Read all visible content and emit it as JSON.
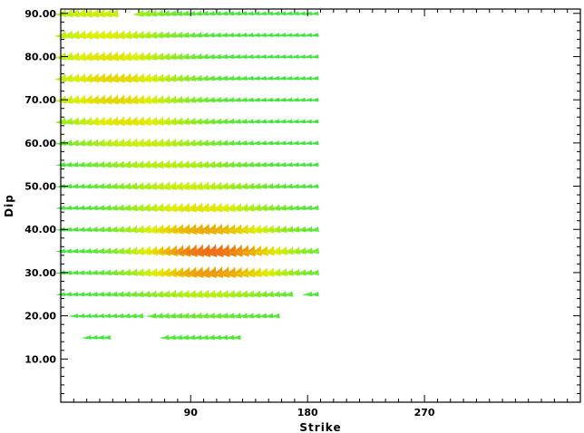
{
  "chart_data": {
    "type": "scatter",
    "xlabel": "Strike",
    "ylabel": "Dip",
    "xlim": [
      -10,
      390
    ],
    "ylim": [
      0,
      91
    ],
    "xticks": [
      90,
      180,
      270
    ],
    "xtick_labels": [
      "90",
      "180",
      "270"
    ],
    "yticks": [
      10,
      20,
      30,
      40,
      50,
      60,
      70,
      80,
      90
    ],
    "ytick_labels": [
      "10.00",
      "20.00",
      "30.00",
      "40.00",
      "50.00",
      "60.00",
      "70.00",
      "80.00",
      "90.00"
    ],
    "grid": false,
    "legend": "none",
    "strike_step": 5,
    "colors": {
      "low": "#3ce63c",
      "mid": "#e8f000",
      "high": "#f05a1e"
    },
    "rows": [
      {
        "dip": 15,
        "segments": [
          [
            10,
            25
          ],
          [
            70,
            125
          ]
        ],
        "peak": 95,
        "level": 0.1
      },
      {
        "dip": 20,
        "segments": [
          [
            0,
            50
          ],
          [
            60,
            155
          ]
        ],
        "peak": 100,
        "level": 0.18
      },
      {
        "dip": 25,
        "segments": [
          [
            -10,
            165
          ],
          [
            180,
            185
          ]
        ],
        "peak": 100,
        "level": 0.4
      },
      {
        "dip": 30,
        "segments": [
          [
            -10,
            185
          ]
        ],
        "peak": 105,
        "level": 0.8
      },
      {
        "dip": 35,
        "segments": [
          [
            -10,
            185
          ]
        ],
        "peak": 105,
        "level": 0.95
      },
      {
        "dip": 40,
        "segments": [
          [
            -10,
            185
          ]
        ],
        "peak": 100,
        "level": 0.75
      },
      {
        "dip": 45,
        "segments": [
          [
            -10,
            185
          ]
        ],
        "peak": 95,
        "level": 0.55
      },
      {
        "dip": 50,
        "segments": [
          [
            -10,
            185
          ]
        ],
        "peak": 85,
        "level": 0.45
      },
      {
        "dip": 55,
        "segments": [
          [
            -10,
            185
          ]
        ],
        "peak": 70,
        "level": 0.4
      },
      {
        "dip": 60,
        "segments": [
          [
            -10,
            185
          ]
        ],
        "peak": 50,
        "level": 0.45
      },
      {
        "dip": 65,
        "segments": [
          [
            -10,
            185
          ]
        ],
        "peak": 40,
        "level": 0.55
      },
      {
        "dip": 70,
        "segments": [
          [
            -10,
            185
          ]
        ],
        "peak": 30,
        "level": 0.6
      },
      {
        "dip": 75,
        "segments": [
          [
            -10,
            185
          ]
        ],
        "peak": 30,
        "level": 0.6
      },
      {
        "dip": 80,
        "segments": [
          [
            -10,
            185
          ]
        ],
        "peak": 25,
        "level": 0.55
      },
      {
        "dip": 85,
        "segments": [
          [
            -10,
            185
          ]
        ],
        "peak": 20,
        "level": 0.5
      },
      {
        "dip": 90,
        "segments": [
          [
            -10,
            30
          ],
          [
            50,
            185
          ]
        ],
        "peak": 15,
        "level": 0.45
      }
    ]
  }
}
